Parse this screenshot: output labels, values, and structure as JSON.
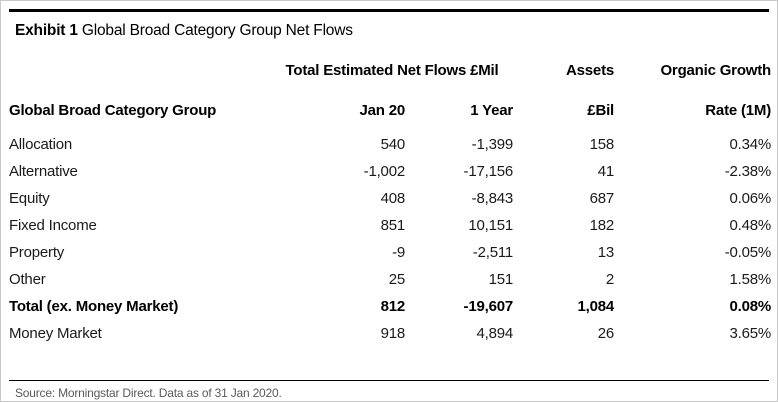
{
  "exhibit": {
    "label": "Exhibit 1",
    "title": "Global Broad Category Group Net Flows"
  },
  "table": {
    "group_headers": {
      "net_flows": "Total Estimated Net Flows £Mil",
      "assets": "Assets",
      "organic_growth": "Organic Growth"
    },
    "column_headers": {
      "category": "Global Broad Category Group",
      "jan_20": "Jan 20",
      "one_year": "1 Year",
      "assets_bil": "£Bil",
      "rate_1m": "Rate (1M)"
    },
    "rows": [
      {
        "category": "Allocation",
        "jan_20": "540",
        "one_year": "-1,399",
        "assets_bil": "158",
        "rate_1m": "0.34%",
        "bold": false
      },
      {
        "category": "Alternative",
        "jan_20": "-1,002",
        "one_year": "-17,156",
        "assets_bil": "41",
        "rate_1m": "-2.38%",
        "bold": false
      },
      {
        "category": "Equity",
        "jan_20": "408",
        "one_year": "-8,843",
        "assets_bil": "687",
        "rate_1m": "0.06%",
        "bold": false
      },
      {
        "category": "Fixed Income",
        "jan_20": "851",
        "one_year": "10,151",
        "assets_bil": "182",
        "rate_1m": "0.48%",
        "bold": false
      },
      {
        "category": "Property",
        "jan_20": "-9",
        "one_year": "-2,511",
        "assets_bil": "13",
        "rate_1m": "-0.05%",
        "bold": false
      },
      {
        "category": "Other",
        "jan_20": "25",
        "one_year": "151",
        "assets_bil": "2",
        "rate_1m": "1.58%",
        "bold": false
      },
      {
        "category": "Total (ex. Money Market)",
        "jan_20": "812",
        "one_year": "-19,607",
        "assets_bil": "1,084",
        "rate_1m": "0.08%",
        "bold": true
      },
      {
        "category": "Money Market",
        "jan_20": "918",
        "one_year": "4,894",
        "assets_bil": "26",
        "rate_1m": "3.65%",
        "bold": false
      }
    ]
  },
  "footer": {
    "source": "Source: Morningstar Direct. Data as of 31 Jan 2020."
  },
  "colors": {
    "rule": "#000000",
    "body_text": "#1a1a1a",
    "source_text": "#595959",
    "frame_border": "#c9c9c9",
    "background": "#ffffff"
  },
  "chart_data": {
    "type": "table",
    "title": "Exhibit 1 Global Broad Category Group Net Flows",
    "columns": [
      "Global Broad Category Group",
      "Total Estimated Net Flows £Mil — Jan 20",
      "Total Estimated Net Flows £Mil — 1 Year",
      "Assets £Bil",
      "Organic Growth Rate (1M)"
    ],
    "rows": [
      [
        "Allocation",
        540,
        -1399,
        158,
        0.34
      ],
      [
        "Alternative",
        -1002,
        -17156,
        41,
        -2.38
      ],
      [
        "Equity",
        408,
        -8843,
        687,
        0.06
      ],
      [
        "Fixed Income",
        851,
        10151,
        182,
        0.48
      ],
      [
        "Property",
        -9,
        -2511,
        13,
        -0.05
      ],
      [
        "Other",
        25,
        151,
        2,
        1.58
      ],
      [
        "Total (ex. Money Market)",
        812,
        -19607,
        1084,
        0.08
      ],
      [
        "Money Market",
        918,
        4894,
        26,
        3.65
      ]
    ],
    "notes": "Organic Growth Rate values are percentages; source: Morningstar Direct, data as of 31 Jan 2020."
  }
}
